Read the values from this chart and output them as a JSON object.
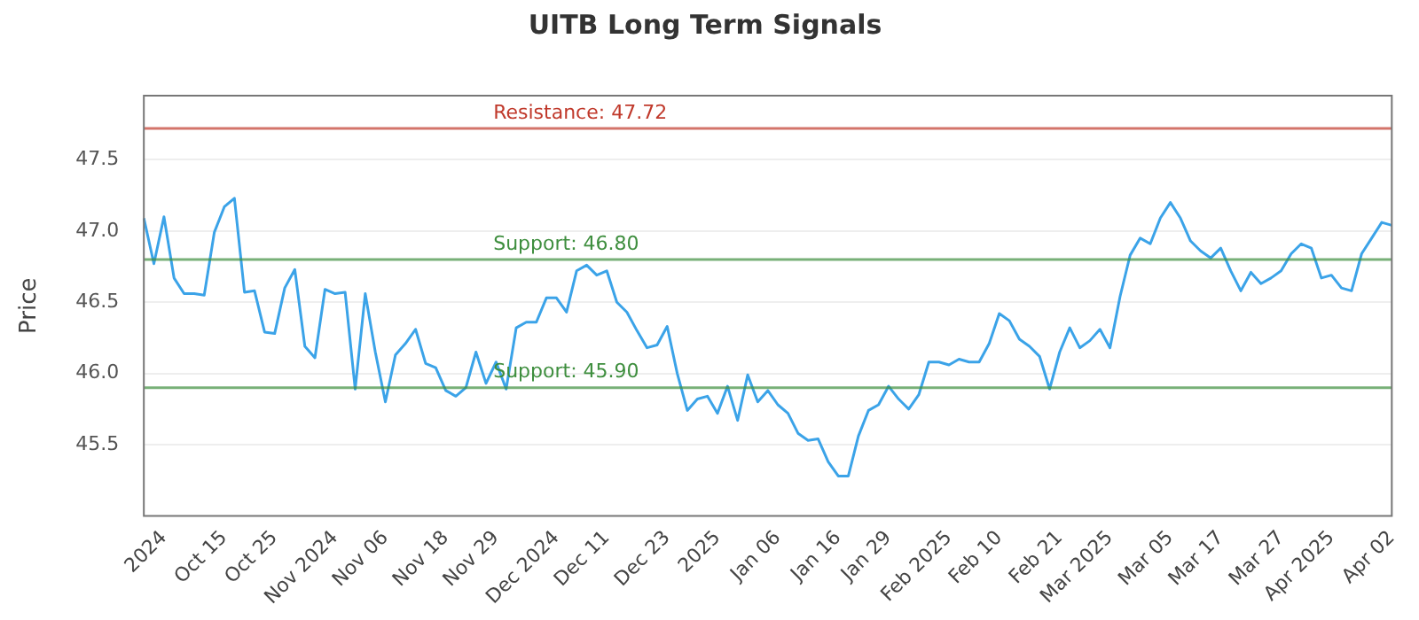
{
  "chart_data": {
    "type": "line",
    "title": "UITB Long Term Signals",
    "ylabel": "Price",
    "categories": [
      null,
      null,
      "2024",
      null,
      null,
      null,
      null,
      null,
      "Oct 15",
      null,
      null,
      null,
      null,
      "Oct 25",
      null,
      null,
      null,
      null,
      null,
      "Nov 2024",
      null,
      null,
      null,
      null,
      "Nov 06",
      null,
      null,
      null,
      null,
      null,
      "Nov 18",
      null,
      null,
      null,
      null,
      "Nov 29",
      null,
      null,
      null,
      null,
      null,
      "Dec 2024",
      null,
      null,
      null,
      null,
      "Dec 11",
      null,
      null,
      null,
      null,
      null,
      "Dec 23",
      null,
      null,
      null,
      null,
      "2025",
      null,
      null,
      null,
      null,
      null,
      "Jan 06",
      null,
      null,
      null,
      null,
      null,
      "Jan 16",
      null,
      null,
      null,
      null,
      "Jan 29",
      null,
      null,
      null,
      null,
      null,
      "Feb 2025",
      null,
      null,
      null,
      null,
      "Feb 10",
      null,
      null,
      null,
      null,
      null,
      "Feb 21",
      null,
      null,
      null,
      null,
      "Mar 2025",
      null,
      null,
      null,
      null,
      null,
      "Mar 05",
      null,
      null,
      null,
      null,
      "Mar 17",
      null,
      null,
      null,
      null,
      null,
      "Mar 27",
      null,
      null,
      null,
      null,
      "Apr 2025",
      null,
      null,
      null,
      null,
      null,
      "Apr 02"
    ],
    "series": [
      {
        "color": "#3ba3e8",
        "values": [
          47.09,
          46.77,
          47.1,
          46.67,
          46.56,
          46.56,
          46.55,
          46.99,
          47.17,
          47.23,
          46.57,
          46.58,
          46.29,
          46.28,
          46.6,
          46.73,
          46.19,
          46.11,
          46.59,
          46.56,
          46.57,
          45.89,
          46.56,
          46.15,
          45.8,
          46.13,
          46.21,
          46.31,
          46.07,
          46.04,
          45.88,
          45.84,
          45.9,
          46.15,
          45.93,
          46.08,
          45.89,
          46.32,
          46.36,
          46.36,
          46.53,
          46.53,
          46.43,
          46.72,
          46.76,
          46.69,
          46.72,
          46.5,
          46.43,
          46.3,
          46.18,
          46.2,
          46.33,
          46.0,
          45.74,
          45.82,
          45.84,
          45.72,
          45.91,
          45.67,
          45.99,
          45.8,
          45.88,
          45.78,
          45.72,
          45.58,
          45.53,
          45.54,
          45.38,
          45.28,
          45.28,
          45.56,
          45.74,
          45.78,
          45.91,
          45.82,
          45.75,
          45.85,
          46.08,
          46.08,
          46.06,
          46.1,
          46.08,
          46.08,
          46.21,
          46.42,
          46.37,
          46.24,
          46.19,
          46.12,
          45.89,
          46.15,
          46.32,
          46.18,
          46.23,
          46.31,
          46.18,
          46.54,
          46.83,
          46.95,
          46.91,
          47.09,
          47.2,
          47.09,
          46.93,
          46.86,
          46.81,
          46.88,
          46.72,
          46.58,
          46.71,
          46.63,
          46.67,
          46.72,
          46.84,
          46.91,
          46.88,
          46.67,
          46.69,
          46.6,
          46.58,
          46.84,
          46.95,
          47.06,
          47.04
        ]
      }
    ],
    "ylim": [
      45.0,
      47.95
    ],
    "yticks": [
      45.5,
      {
        "value": 46,
        "label": "46.0"
      },
      46.5,
      {
        "value": 47,
        "label": "47.0"
      },
      47.5
    ],
    "grid": "y",
    "legend": false,
    "marker": "none",
    "line_style": "solid",
    "ref_lines": [
      {
        "axis": "y",
        "value": 47.72,
        "label": "Resistance: 47.72",
        "color": "#c0392b"
      },
      {
        "axis": "y",
        "value": 46.8,
        "label": "Support: 46.80",
        "color": "#3e8e3e"
      },
      {
        "axis": "y",
        "value": 45.9,
        "label": "Support: 45.90",
        "color": "#3e8e3e"
      }
    ]
  }
}
